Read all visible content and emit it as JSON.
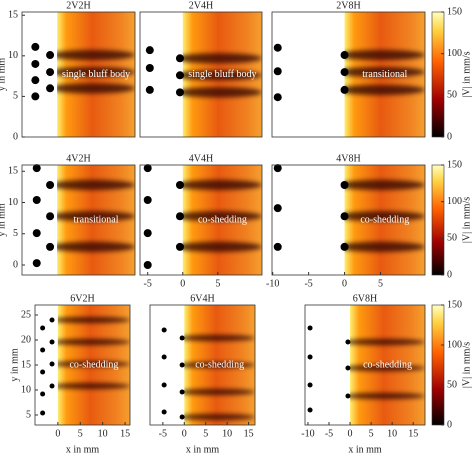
{
  "chart_data": [
    {
      "type": "heatmap",
      "title": "2V2H",
      "annotation": "single bluff body",
      "xlim": [
        -5,
        11.1
      ],
      "ylim": [
        0,
        15.4
      ],
      "yticks": [
        0,
        5,
        10,
        15
      ],
      "ylabel": "y in mm",
      "markers": {
        "x": [
          -3.1,
          -3.1,
          -3.1,
          -3.1,
          -1,
          -1,
          -1
        ],
        "y": [
          11.1,
          9,
          7,
          5,
          10.1,
          8,
          6
        ]
      }
    },
    {
      "type": "heatmap",
      "title": "2V4H",
      "annotation": "single bluff body",
      "xlim": [
        -6.1,
        11.3
      ],
      "ylim": [
        0,
        15.4
      ],
      "markers": {
        "x": [
          -4.7,
          -4.7,
          -4.7,
          -0.4,
          -0.4,
          -0.4
        ],
        "y": [
          10.7,
          8.5,
          5.8,
          9.7,
          7.6,
          5.5
        ]
      }
    },
    {
      "type": "heatmap",
      "title": "2V8H",
      "annotation": "transitional",
      "xlim": [
        -10.1,
        11.2
      ],
      "ylim": [
        0,
        15.4
      ],
      "markers": {
        "x": [
          -9.3,
          -9.3,
          -9.3,
          0,
          0,
          0
        ],
        "y": [
          11,
          8.1,
          4.9,
          10.1,
          8,
          5.8
        ]
      },
      "colorbar": {
        "label": "|V| in mm/s",
        "lim": [
          0,
          150
        ],
        "ticks": [
          0,
          50,
          100,
          150
        ]
      }
    },
    {
      "type": "heatmap",
      "title": "4V2H",
      "annotation": "transitional",
      "xlim": [
        -5,
        11.1
      ],
      "ylim": [
        -1.6,
        16
      ],
      "yticks": [
        0,
        5,
        10,
        15
      ],
      "ylabel": "y in mm",
      "markers": {
        "x": [
          -2.9,
          -2.9,
          -2.9,
          -2.9,
          -1,
          -1,
          -1
        ],
        "y": [
          15.5,
          10.4,
          5.1,
          0.3,
          12.8,
          7.8,
          2.9
        ]
      }
    },
    {
      "type": "heatmap",
      "title": "4V4H",
      "annotation": "co-shedding",
      "xlim": [
        -6.1,
        11.3
      ],
      "ylim": [
        -1.6,
        16
      ],
      "xticks": [
        -5,
        0,
        5
      ],
      "markers": {
        "x": [
          -5,
          -5,
          -5,
          -5,
          -0.4,
          -0.4,
          -0.4
        ],
        "y": [
          15.5,
          10.4,
          5.1,
          0,
          12.8,
          7.8,
          2.9
        ]
      }
    },
    {
      "type": "heatmap",
      "title": "4V8H",
      "annotation": "co-shedding",
      "xlim": [
        -10.1,
        11.2
      ],
      "ylim": [
        -1.6,
        16
      ],
      "xticks": [
        -10,
        -5,
        0,
        5
      ],
      "markers": {
        "x": [
          -9.3,
          -9.3,
          -9.3,
          0,
          0,
          0
        ],
        "y": [
          15.5,
          9.1,
          2.9,
          12.8,
          7.8,
          2.9
        ]
      },
      "colorbar": {
        "label": "|V| in mm/s",
        "lim": [
          0,
          150
        ],
        "ticks": [
          0,
          50,
          100,
          150
        ]
      }
    },
    {
      "type": "heatmap",
      "title": "6V2H",
      "annotation": "co-shedding",
      "xlim": [
        -5.1,
        16.1
      ],
      "ylim": [
        3,
        27
      ],
      "xticks": [
        0,
        5,
        10,
        15
      ],
      "yticks": [
        5,
        10,
        15,
        20,
        25
      ],
      "ylabel": "y in mm",
      "xlabel": "x in mm",
      "markers": {
        "x": [
          -3.4,
          -3.4,
          -3.4,
          -3.4,
          -3.4,
          -1.3,
          -1.3,
          -1.3,
          -1.3
        ],
        "y": [
          22.4,
          18,
          13.6,
          9.2,
          5.4,
          24,
          19.6,
          15.2,
          10.8
        ]
      }
    },
    {
      "type": "heatmap",
      "title": "6V4H",
      "annotation": "co-shedding",
      "xlim": [
        -8,
        16.5
      ],
      "ylim": [
        3,
        27
      ],
      "xticks": [
        -5,
        0,
        5,
        10,
        15
      ],
      "xlabel": "x in mm",
      "markers": {
        "x": [
          -4.7,
          -4.7,
          -4.7,
          -4.7,
          -0.5,
          -0.5,
          -0.5,
          -0.5
        ],
        "y": [
          22,
          16.6,
          11,
          5.6,
          20.4,
          15,
          9.6,
          4.6
        ]
      }
    },
    {
      "type": "heatmap",
      "title": "6V8H",
      "annotation": "co-shedding",
      "xlim": [
        -10.7,
        17.8
      ],
      "ylim": [
        3,
        27
      ],
      "xticks": [
        -10,
        -5,
        0,
        5,
        10,
        15
      ],
      "xlabel": "x in mm",
      "markers": {
        "x": [
          -9.5,
          -9.5,
          -9.5,
          -9.5,
          -0.5,
          -0.5,
          -0.5
        ],
        "y": [
          22.4,
          16.6,
          11,
          6,
          19.6,
          14.4,
          8.8
        ]
      },
      "colorbar": {
        "label": "|V| in mm/s",
        "lim": [
          0,
          150
        ],
        "ticks": [
          0,
          50,
          100,
          150
        ]
      }
    }
  ]
}
